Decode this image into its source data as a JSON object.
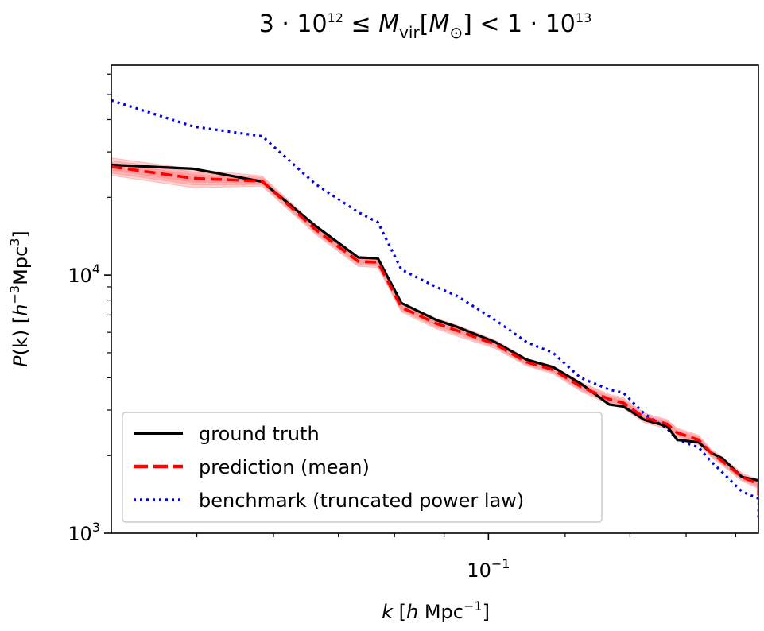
{
  "chart_data": {
    "type": "line",
    "title": "3·10¹² ≤ M_vir[M_⊙] < 1·10¹³",
    "title_parts": {
      "lower_coef": "3",
      "lower_exp": "12",
      "var": "M",
      "var_sub": "vir",
      "unit": "M",
      "unit_sub": "⊙",
      "upper_coef": "1",
      "upper_exp": "13"
    },
    "xlabel": "k [h Mpc⁻¹]",
    "xlabel_parts": {
      "var": "k",
      "unit_pre": "[",
      "h": "h",
      "unit": " Mpc",
      "exp": "−1",
      "close": "]"
    },
    "ylabel": "P(k) [h⁻³Mpc³]",
    "ylabel_parts": {
      "var": "P",
      "arg": "(k)",
      "unit_pre": "[",
      "h": "h",
      "exp1": "−3",
      "unit": "Mpc",
      "exp2": "3",
      "close": "]"
    },
    "x_scale": "log",
    "y_scale": "log",
    "xlim": [
      0.0408,
      0.19
    ],
    "ylim": [
      1000,
      65000
    ],
    "x_ticks": [
      {
        "value": 0.1,
        "base": "10",
        "exp": "−1"
      }
    ],
    "y_ticks": [
      {
        "value": 1000,
        "base": "10",
        "exp": "3"
      },
      {
        "value": 10000,
        "base": "10",
        "exp": "4"
      }
    ],
    "grid": false,
    "legend_position": "lower-left",
    "series": [
      {
        "name": "ground truth",
        "color": "#000000",
        "style": "solid",
        "x": [
          0.0408,
          0.0496,
          0.0584,
          0.0663,
          0.0734,
          0.0769,
          0.0813,
          0.0883,
          0.0928,
          0.1016,
          0.1095,
          0.1166,
          0.1245,
          0.1333,
          0.1378,
          0.1449,
          0.1529,
          0.1567,
          0.1648,
          0.1697,
          0.1744,
          0.1827,
          0.1902,
          0.19
        ],
        "y": [
          26700,
          25800,
          23000,
          15500,
          11700,
          11600,
          7800,
          6700,
          6300,
          5500,
          4700,
          4400,
          3800,
          3150,
          3100,
          2750,
          2600,
          2300,
          2250,
          2050,
          1950,
          1650,
          1600,
          1450
        ]
      },
      {
        "name": "prediction (mean)",
        "color": "#ff0000",
        "style": "dashed",
        "x": [
          0.0408,
          0.0496,
          0.0584,
          0.0663,
          0.0734,
          0.0769,
          0.0813,
          0.0883,
          0.0928,
          0.1016,
          0.1095,
          0.1166,
          0.1245,
          0.1333,
          0.1378,
          0.1449,
          0.1529,
          0.1567,
          0.1648,
          0.1697,
          0.1744,
          0.1827,
          0.1902,
          0.19
        ],
        "y": [
          26300,
          23700,
          23100,
          15000,
          11300,
          11200,
          7500,
          6500,
          6100,
          5400,
          4600,
          4300,
          3700,
          3300,
          3200,
          2800,
          2650,
          2450,
          2300,
          2050,
          1900,
          1650,
          1550,
          1400
        ],
        "band": {
          "lower": [
            24300,
            21800,
            22100,
            14400,
            10800,
            10700,
            7200,
            6200,
            5800,
            5200,
            4450,
            4150,
            3550,
            3150,
            3050,
            2680,
            2540,
            2350,
            2200,
            1980,
            1830,
            1590,
            1490,
            1340
          ],
          "upper": [
            28400,
            25700,
            24200,
            15600,
            11800,
            11700,
            7800,
            6800,
            6400,
            5600,
            4750,
            4450,
            3850,
            3450,
            3350,
            2920,
            2760,
            2550,
            2400,
            2120,
            1970,
            1710,
            1610,
            1460
          ]
        }
      },
      {
        "name": "benchmark (truncated power law)",
        "color": "#0000ee",
        "style": "dotted",
        "x": [
          0.0408,
          0.0496,
          0.0584,
          0.0663,
          0.0734,
          0.0769,
          0.0813,
          0.0883,
          0.0928,
          0.1016,
          0.1095,
          0.1166,
          0.1245,
          0.1333,
          0.1378,
          0.1449,
          0.1529,
          0.1567,
          0.1648,
          0.1697,
          0.1744,
          0.1827,
          0.1902,
          0.19
        ],
        "y": [
          47500,
          37600,
          34500,
          22500,
          17500,
          16000,
          10500,
          9000,
          8300,
          6700,
          5500,
          5000,
          4000,
          3600,
          3500,
          2900,
          2550,
          2300,
          2150,
          1900,
          1720,
          1450,
          1360,
          1150
        ]
      }
    ]
  }
}
